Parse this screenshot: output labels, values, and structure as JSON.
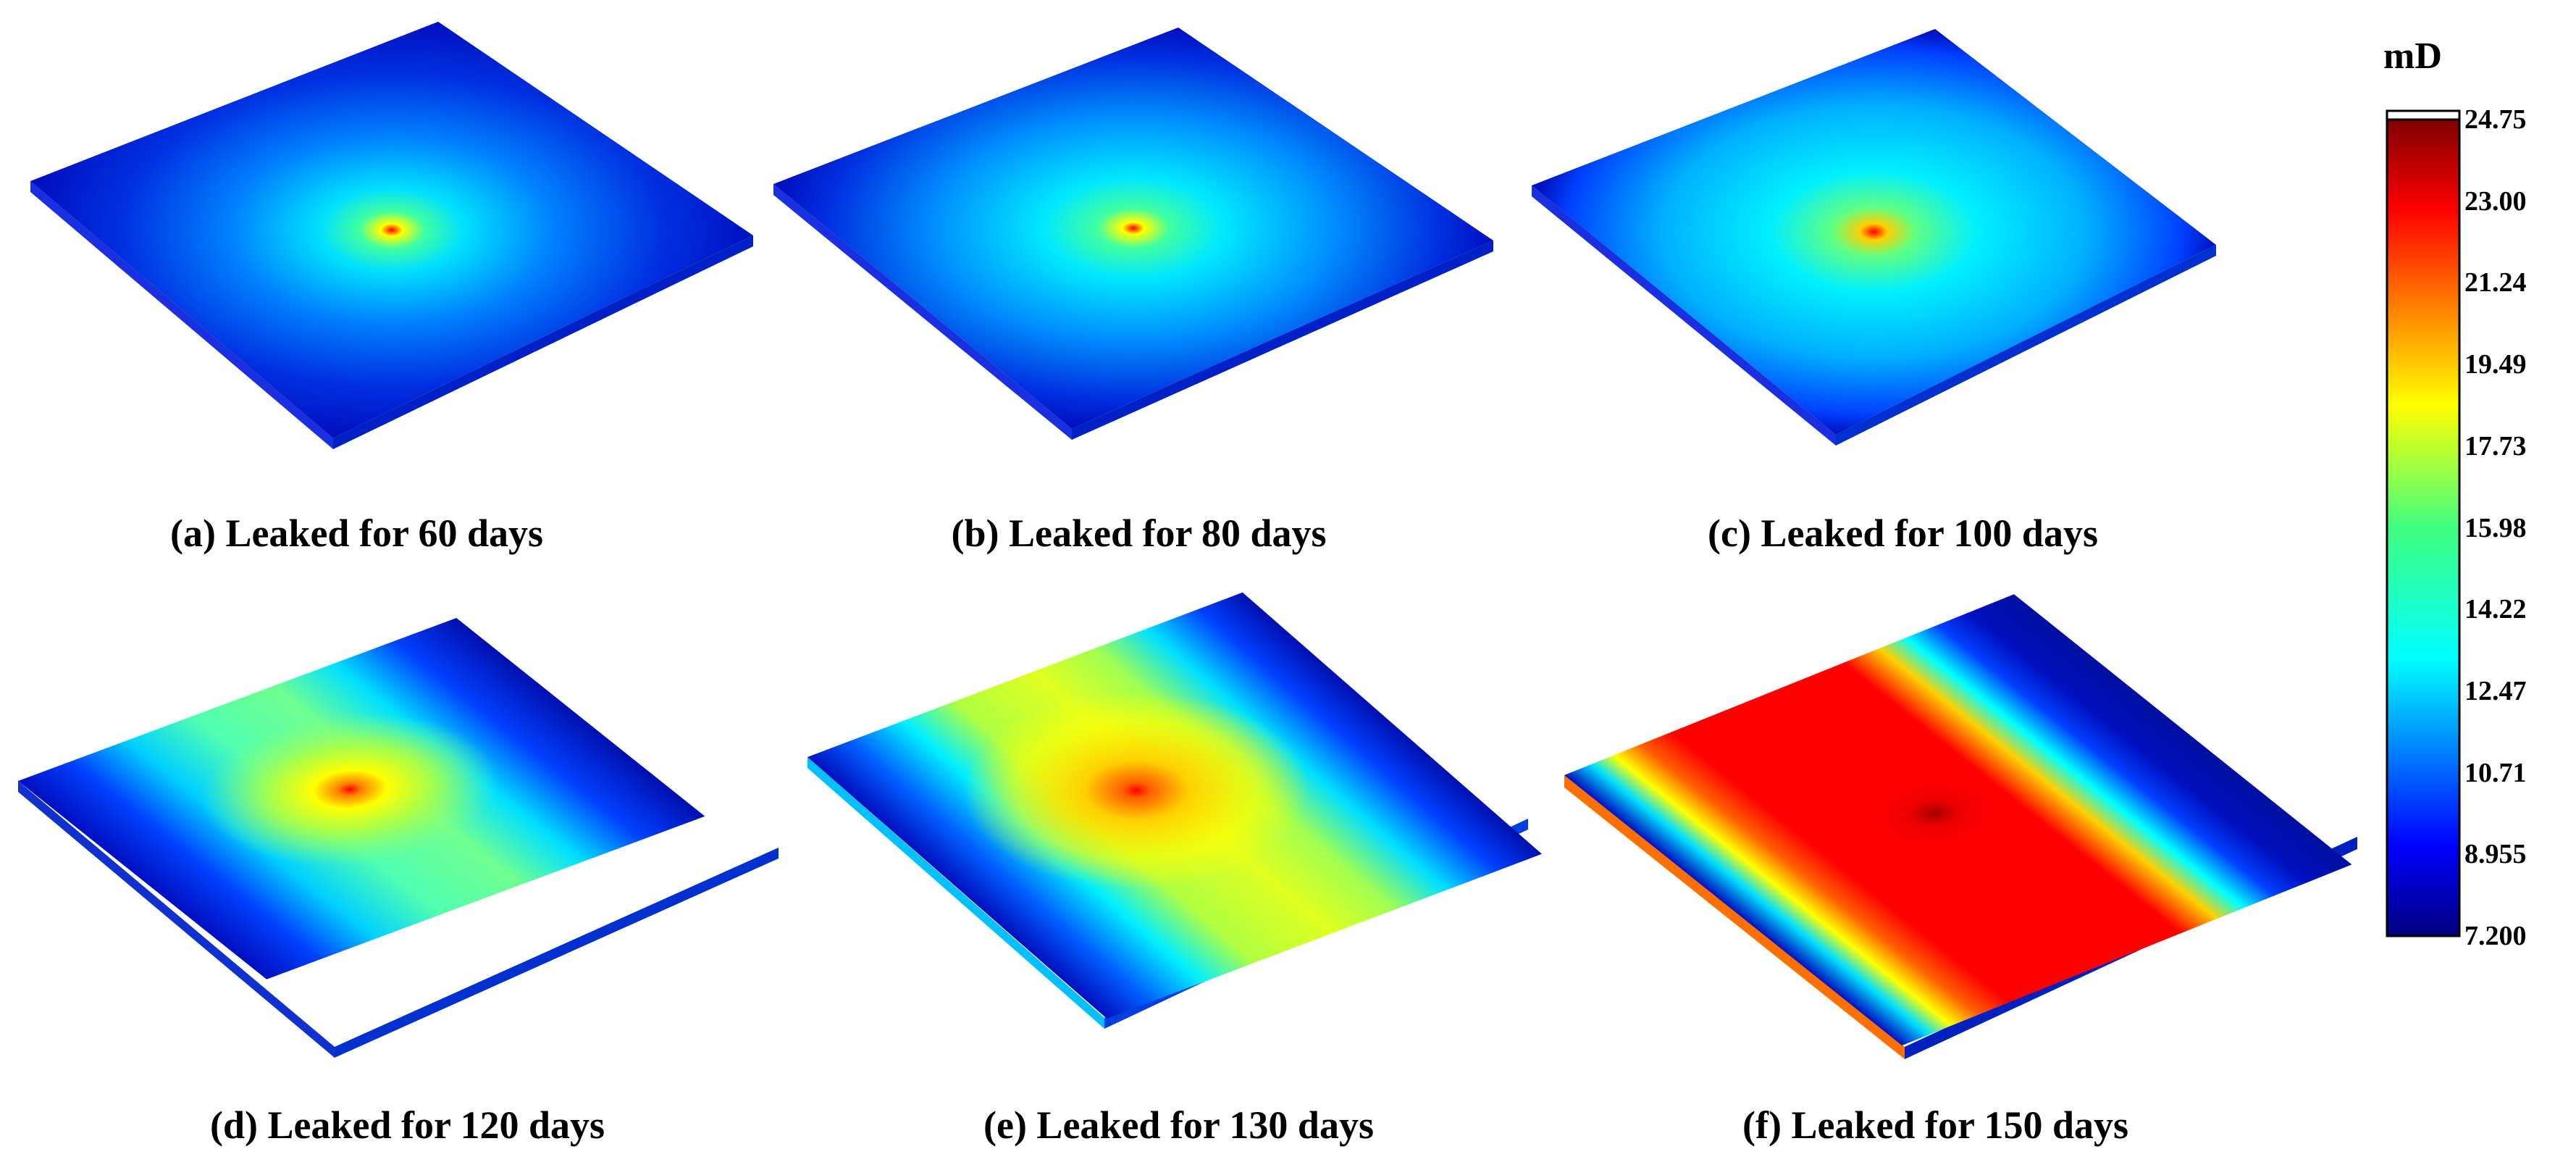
{
  "panels": [
    {
      "caption": "(a) Leaked for 60 days",
      "days": 60
    },
    {
      "caption": "(b) Leaked for 80 days",
      "days": 80
    },
    {
      "caption": "(c) Leaked for 100 days",
      "days": 100
    },
    {
      "caption": "(d) Leaked for 120 days",
      "days": 120
    },
    {
      "caption": "(e) Leaked for 130 days",
      "days": 130
    },
    {
      "caption": "(f) Leaked for 150 days",
      "days": 150
    }
  ],
  "colorbar": {
    "unit": "mD",
    "ticks": [
      "24.75",
      "23.00",
      "21.24",
      "19.49",
      "17.73",
      "15.98",
      "14.22",
      "12.47",
      "10.71",
      "8.955",
      "7.200"
    ],
    "min": 7.2,
    "max": 24.75,
    "colormap": "jet"
  }
}
